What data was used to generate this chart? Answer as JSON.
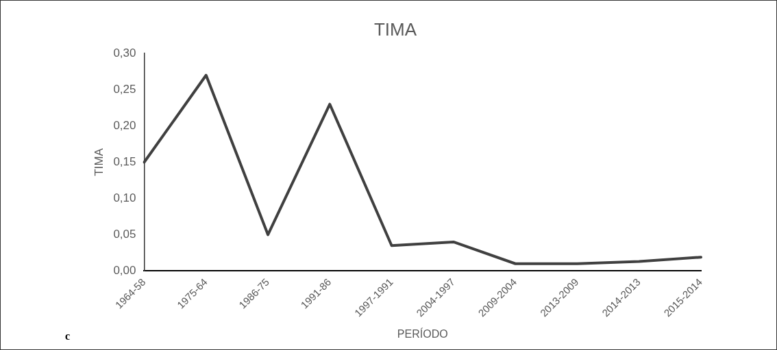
{
  "chart_data": {
    "type": "line",
    "title": "TIMA",
    "xlabel": "PERÍODO",
    "ylabel": "TIMA",
    "categories": [
      "1964-58",
      "1975-64",
      "1986-75",
      "1991-86",
      "1997-1991",
      "2004-1997",
      "2009-2004",
      "2013-2009",
      "2014-2013",
      "2015-2014"
    ],
    "series": [
      {
        "color": "#404040",
        "values": [
          0.15,
          0.27,
          0.05,
          0.23,
          0.035,
          0.04,
          0.01,
          0.01,
          0.013,
          0.019
        ]
      }
    ],
    "ylim": [
      0,
      0.3
    ],
    "yticks": [
      {
        "value": 0,
        "label": "0,00"
      },
      {
        "value": 0.05,
        "label": "0,05"
      },
      {
        "value": 0.1,
        "label": "0,10"
      },
      {
        "value": 0.15,
        "label": "0,15"
      },
      {
        "value": 0.2,
        "label": "0,20"
      },
      {
        "value": 0.25,
        "label": "0,25"
      },
      {
        "value": 0.3,
        "label": "0,30"
      }
    ],
    "grid": false,
    "legend": false,
    "marker": "none",
    "line_style": "solid",
    "annotations": [
      "c"
    ]
  }
}
